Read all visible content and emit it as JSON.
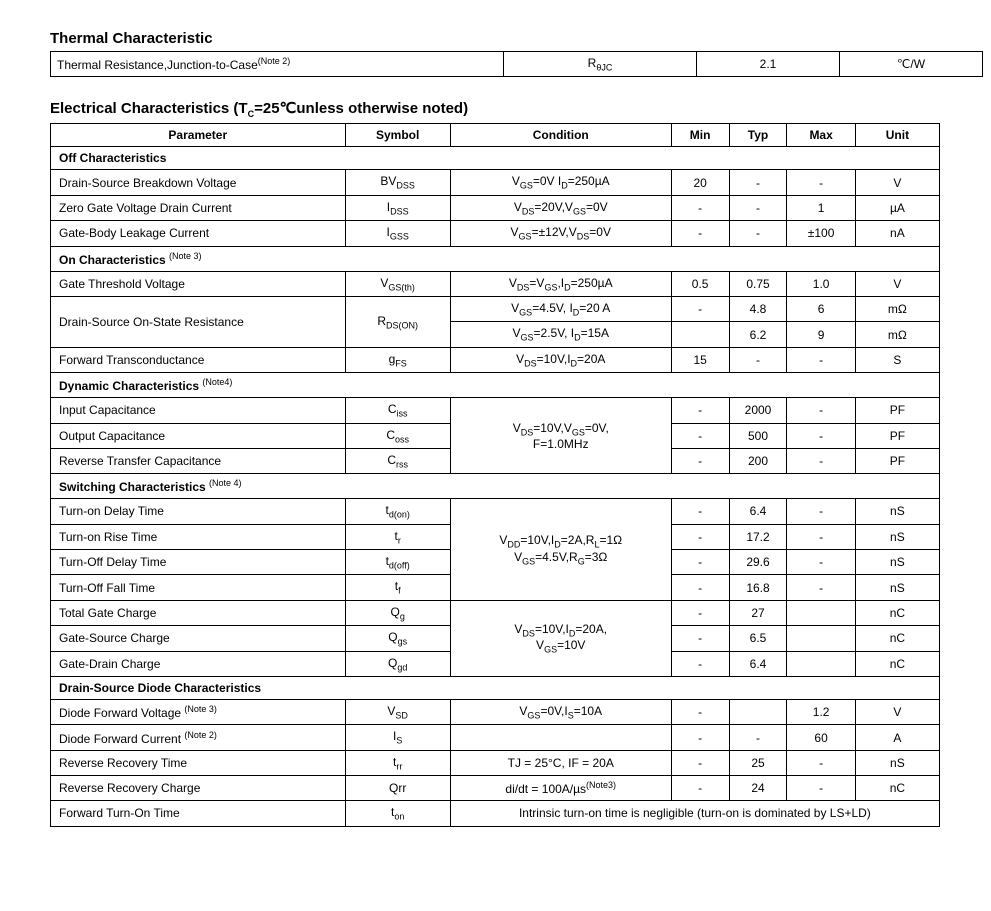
{
  "thermal": {
    "title": "Thermal Characteristic",
    "row": {
      "param": "Thermal Resistance,Junction-to-Case",
      "note": "(Note 2)",
      "symbol_main": "R",
      "symbol_sub": "θJC",
      "value": "2.1",
      "unit": "℃/W"
    }
  },
  "elec": {
    "title_pre": "Electrical Characteristics (T",
    "title_sub": "C",
    "title_post": "=25℃unless otherwise noted)",
    "headers": {
      "param": "Parameter",
      "symbol": "Symbol",
      "cond": "Condition",
      "min": "Min",
      "typ": "Typ",
      "max": "Max",
      "unit": "Unit"
    },
    "sections": {
      "off": "Off Characteristics",
      "on": "On Characteristics ",
      "on_note": "(Note 3)",
      "dyn": "Dynamic Characteristics ",
      "dyn_note": "(Note4)",
      "sw": "Switching Characteristics ",
      "sw_note": "(Note 4)",
      "diode": "Drain-Source Diode Characteristics"
    },
    "off_rows": {
      "bvdss": {
        "param": "Drain-Source Breakdown Voltage",
        "sym_a": "BV",
        "sym_b": "DSS",
        "cond_a": "V",
        "cond_b": "GS",
        "cond_c": "=0V I",
        "cond_d": "D",
        "cond_e": "=250µA",
        "min": "20",
        "typ": "-",
        "max": "-",
        "unit": "V"
      },
      "idss": {
        "param": "Zero Gate Voltage Drain Current",
        "sym_a": "I",
        "sym_b": "DSS",
        "cond_a": "V",
        "cond_b": "DS",
        "cond_c": "=20V,V",
        "cond_d": "GS",
        "cond_e": "=0V",
        "min": "-",
        "typ": "-",
        "max": "1",
        "unit": "µA"
      },
      "igss": {
        "param": "Gate-Body Leakage Current",
        "sym_a": "I",
        "sym_b": "GSS",
        "cond_a": "V",
        "cond_b": "GS",
        "cond_c": "=±12V,V",
        "cond_d": "DS",
        "cond_e": "=0V",
        "min": "-",
        "typ": "-",
        "max": "±100",
        "unit": "nA"
      }
    },
    "on_rows": {
      "vgsth": {
        "param": "Gate Threshold Voltage",
        "sym_a": "V",
        "sym_b": "GS(th)",
        "cond_a": "V",
        "cond_b": "DS",
        "cond_c": "=V",
        "cond_d": "GS",
        "cond_e": ",I",
        "cond_f": "D",
        "cond_g": "=250µA",
        "min": "0.5",
        "typ": "0.75",
        "max": "1.0",
        "unit": "V"
      },
      "rdson_label": "Drain-Source On-State Resistance",
      "rdson_sym_a": "R",
      "rdson_sym_b": "DS(ON)",
      "rdson1": {
        "cond_a": "V",
        "cond_b": "GS",
        "cond_c": "=4.5V, I",
        "cond_d": "D",
        "cond_e": "=20 A",
        "min": "-",
        "typ": "4.8",
        "max": "6",
        "unit": "mΩ"
      },
      "rdson2": {
        "cond_a": "V",
        "cond_b": "GS",
        "cond_c": "=2.5V, I",
        "cond_d": "D",
        "cond_e": "=15A",
        "min": "",
        "typ": "6.2",
        "max": "9",
        "unit": "mΩ"
      },
      "gfs": {
        "param": "Forward Transconductance",
        "sym_a": "g",
        "sym_b": "FS",
        "cond_a": "V",
        "cond_b": "DS",
        "cond_c": "=10V,I",
        "cond_d": "D",
        "cond_e": "=20A",
        "min": "15",
        "typ": "-",
        "max": "-",
        "unit": "S"
      }
    },
    "dyn_rows": {
      "ciss": {
        "param": "Input Capacitance",
        "sym_a": "C",
        "sym_b": "iss",
        "min": "-",
        "typ": "2000",
        "max": "-",
        "unit": "PF"
      },
      "coss": {
        "param": "Output Capacitance",
        "sym_a": "C",
        "sym_b": "oss",
        "min": "-",
        "typ": "500",
        "max": "-",
        "unit": "PF"
      },
      "crss": {
        "param": "Reverse Transfer Capacitance",
        "sym_a": "C",
        "sym_b": "rss",
        "min": "-",
        "typ": "200",
        "max": "-",
        "unit": "PF"
      },
      "cond_line1_a": "V",
      "cond_line1_b": "DS",
      "cond_line1_c": "=10V,V",
      "cond_line1_d": "GS",
      "cond_line1_e": "=0V,",
      "cond_line2": "F=1.0MHz"
    },
    "sw_rows": {
      "tdon": {
        "param": "Turn-on Delay Time",
        "sym_a": "t",
        "sym_b": "d(on)",
        "min": "-",
        "typ": "6.4",
        "max": "-",
        "unit": "nS"
      },
      "tr": {
        "param": "Turn-on Rise Time",
        "sym_a": "t",
        "sym_b": "r",
        "min": "-",
        "typ": "17.2",
        "max": "-",
        "unit": "nS"
      },
      "tdoff": {
        "param": "Turn-Off Delay Time",
        "sym_a": "t",
        "sym_b": "d(off)",
        "min": "-",
        "typ": "29.6",
        "max": "-",
        "unit": "nS"
      },
      "tf": {
        "param": "Turn-Off Fall Time",
        "sym_a": "t",
        "sym_b": "f",
        "min": "-",
        "typ": "16.8",
        "max": "-",
        "unit": "nS"
      },
      "cond1_a": "V",
      "cond1_b": "DD",
      "cond1_c": "=10V,I",
      "cond1_d": "D",
      "cond1_e": "=2A,R",
      "cond1_f": "L",
      "cond1_g": "=1Ω",
      "cond2_a": "V",
      "cond2_b": "GS",
      "cond2_c": "=4.5V,R",
      "cond2_d": "G",
      "cond2_e": "=3Ω",
      "qg": {
        "param": "Total Gate Charge",
        "sym_a": "Q",
        "sym_b": "g",
        "min": "-",
        "typ": "27",
        "max": "",
        "unit": "nC"
      },
      "qgs": {
        "param": "Gate-Source Charge",
        "sym_a": "Q",
        "sym_b": "gs",
        "min": "-",
        "typ": "6.5",
        "max": "",
        "unit": "nC"
      },
      "qgd": {
        "param": "Gate-Drain Charge",
        "sym_a": "Q",
        "sym_b": "gd",
        "min": "-",
        "typ": "6.4",
        "max": "",
        "unit": "nC"
      },
      "qcond1_a": "V",
      "qcond1_b": "DS",
      "qcond1_c": "=10V,I",
      "qcond1_d": "D",
      "qcond1_e": "=20A,",
      "qcond2_a": "V",
      "qcond2_b": "GS",
      "qcond2_c": "=10V"
    },
    "diode_rows": {
      "vsd": {
        "param": "Diode Forward Voltage ",
        "note": "(Note 3)",
        "sym_a": "V",
        "sym_b": "SD",
        "cond_a": "V",
        "cond_b": "GS",
        "cond_c": "=0V,I",
        "cond_d": "S",
        "cond_e": "=10A",
        "min": "-",
        "typ": "",
        "max": "1.2",
        "unit": "V"
      },
      "is": {
        "param": "Diode Forward Current ",
        "note": "(Note 2)",
        "sym_a": "I",
        "sym_b": "S",
        "cond": "",
        "min": "-",
        "typ": "-",
        "max": "60",
        "unit": "A"
      },
      "trr": {
        "param": "Reverse Recovery Time",
        "sym_a": "t",
        "sym_b": "rr",
        "cond": "TJ = 25°C, IF = 20A",
        "min": "-",
        "typ": "25",
        "max": "-",
        "unit": "nS"
      },
      "qrr": {
        "param": "Reverse Recovery Charge",
        "sym": "Qrr",
        "cond_a": "di/dt = 100A/µs",
        "cond_note": "(Note3)",
        "min": "-",
        "typ": "24",
        "max": "-",
        "unit": "nC"
      },
      "ton": {
        "param": "Forward Turn-On Time",
        "sym_a": "t",
        "sym_b": "on",
        "cond": "Intrinsic turn-on time is negligible (turn-on is dominated by LS+LD)"
      }
    }
  }
}
